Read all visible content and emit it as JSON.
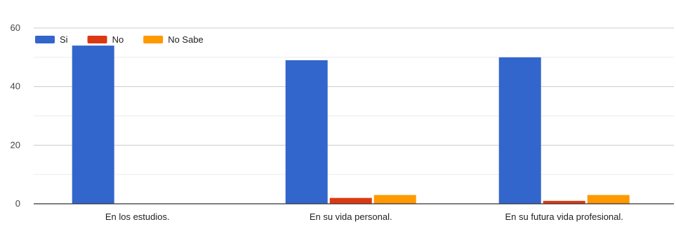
{
  "chart_data": {
    "type": "bar",
    "categories": [
      "En los estudios.",
      "En su vida personal.",
      "En su futura vida profesional."
    ],
    "series": [
      {
        "name": "Si",
        "color": "#3366cc",
        "values": [
          54,
          49,
          50
        ]
      },
      {
        "name": "No",
        "color": "#dc3912",
        "values": [
          0,
          2,
          1
        ]
      },
      {
        "name": "No Sabe",
        "color": "#ff9900",
        "values": [
          0,
          3,
          3
        ]
      }
    ],
    "ylim": [
      0,
      60
    ],
    "yticks": [
      0,
      20,
      40,
      60
    ],
    "grid": true,
    "legend_position": "top-left",
    "title": "",
    "xlabel": "",
    "ylabel": ""
  }
}
